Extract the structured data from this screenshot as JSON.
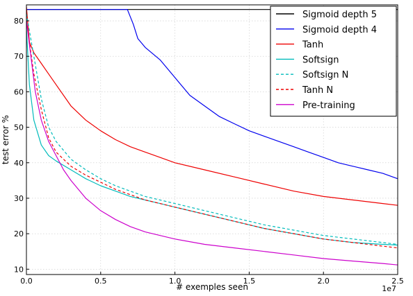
{
  "chart_data": {
    "type": "line",
    "xlabel": "# exemples seen",
    "ylabel": "test error %",
    "x_scale_label": "1e7",
    "xlim": [
      0,
      2.5
    ],
    "ylim": [
      8.5,
      84.5
    ],
    "x_ticks": [
      0.0,
      0.5,
      1.0,
      1.5,
      2.0,
      2.5
    ],
    "x_tick_labels": [
      "0.0",
      "0.5",
      "1.0",
      "1.5",
      "2.0",
      "2.5"
    ],
    "y_ticks": [
      10,
      20,
      30,
      40,
      50,
      60,
      70,
      80
    ],
    "y_tick_labels": [
      "10",
      "20",
      "30",
      "40",
      "50",
      "60",
      "70",
      "80"
    ],
    "grid": true,
    "legend_position": "top-right",
    "series": [
      {
        "name": "Sigmoid depth 5",
        "color": "#000000",
        "dash": "solid",
        "x": [
          0.0,
          0.25,
          0.5,
          0.75,
          1.0,
          1.25,
          1.5,
          1.75,
          2.0,
          2.25,
          2.5
        ],
        "y": [
          83.2,
          83.2,
          83.2,
          83.2,
          83.2,
          83.2,
          83.2,
          83.2,
          83.2,
          83.2,
          83.2
        ]
      },
      {
        "name": "Sigmoid depth 4",
        "color": "#0000ee",
        "dash": "solid",
        "x": [
          0.0,
          0.5,
          0.68,
          0.72,
          0.75,
          0.8,
          0.9,
          1.0,
          1.1,
          1.2,
          1.3,
          1.4,
          1.5,
          1.6,
          1.7,
          1.8,
          1.9,
          2.0,
          2.1,
          2.2,
          2.3,
          2.4,
          2.5
        ],
        "y": [
          83.2,
          83.2,
          83.2,
          79.0,
          75.0,
          72.5,
          69.0,
          64.0,
          59.0,
          56.0,
          53.0,
          51.0,
          49.0,
          47.5,
          46.0,
          44.5,
          43.0,
          41.5,
          40.0,
          39.0,
          38.0,
          37.0,
          35.5
        ]
      },
      {
        "name": "Tanh",
        "color": "#ee0000",
        "dash": "solid",
        "x": [
          0.0,
          0.02,
          0.05,
          0.1,
          0.15,
          0.2,
          0.3,
          0.4,
          0.5,
          0.6,
          0.7,
          0.8,
          0.9,
          1.0,
          1.2,
          1.4,
          1.6,
          1.8,
          2.0,
          2.2,
          2.4,
          2.5
        ],
        "y": [
          84.0,
          74.0,
          71.0,
          68.0,
          65.0,
          62.0,
          56.0,
          52.0,
          49.0,
          46.5,
          44.5,
          43.0,
          41.5,
          40.0,
          38.0,
          36.0,
          34.0,
          32.0,
          30.5,
          29.5,
          28.5,
          28.0
        ]
      },
      {
        "name": "Softsign",
        "color": "#00bbbb",
        "dash": "solid",
        "x": [
          0.0,
          0.02,
          0.05,
          0.1,
          0.15,
          0.2,
          0.3,
          0.4,
          0.5,
          0.6,
          0.7,
          0.8,
          0.9,
          1.0,
          1.2,
          1.4,
          1.6,
          1.8,
          2.0,
          2.2,
          2.4,
          2.5
        ],
        "y": [
          78.0,
          62.0,
          52.0,
          45.0,
          42.0,
          40.5,
          38.0,
          35.5,
          33.5,
          32.0,
          30.5,
          29.5,
          28.5,
          27.5,
          25.5,
          23.5,
          21.5,
          20.0,
          18.5,
          17.5,
          17.0,
          16.8
        ]
      },
      {
        "name": "Softsign N",
        "color": "#00bbbb",
        "dash": "dashed",
        "x": [
          0.0,
          0.05,
          0.1,
          0.15,
          0.2,
          0.3,
          0.4,
          0.5,
          0.6,
          0.7,
          0.8,
          0.9,
          1.0,
          1.2,
          1.4,
          1.6,
          1.8,
          2.0,
          2.2,
          2.4,
          2.5
        ],
        "y": [
          82.0,
          70.0,
          58.0,
          50.0,
          46.0,
          41.0,
          38.0,
          35.5,
          33.5,
          32.0,
          30.5,
          29.5,
          28.5,
          26.5,
          24.5,
          22.5,
          21.0,
          19.5,
          18.5,
          17.5,
          17.0
        ]
      },
      {
        "name": "Tanh N",
        "color": "#ee0000",
        "dash": "dashed",
        "x": [
          0.0,
          0.05,
          0.1,
          0.15,
          0.2,
          0.3,
          0.4,
          0.5,
          0.6,
          0.7,
          0.8,
          0.9,
          1.0,
          1.2,
          1.4,
          1.6,
          1.8,
          2.0,
          2.2,
          2.4,
          2.5
        ],
        "y": [
          80.0,
          65.0,
          55.0,
          47.0,
          43.0,
          39.0,
          36.5,
          34.5,
          32.5,
          31.0,
          29.5,
          28.5,
          27.5,
          25.5,
          23.5,
          21.5,
          20.0,
          18.5,
          17.5,
          16.5,
          16.0
        ]
      },
      {
        "name": "Pre-training",
        "color": "#cc00cc",
        "dash": "solid",
        "x": [
          0.0,
          0.03,
          0.06,
          0.1,
          0.15,
          0.2,
          0.25,
          0.3,
          0.4,
          0.5,
          0.6,
          0.7,
          0.8,
          1.0,
          1.2,
          1.4,
          1.6,
          1.8,
          2.0,
          2.2,
          2.4,
          2.5
        ],
        "y": [
          80.0,
          70.0,
          60.0,
          52.0,
          46.0,
          42.0,
          38.0,
          35.0,
          30.0,
          26.5,
          24.0,
          22.0,
          20.5,
          18.5,
          17.0,
          16.0,
          15.0,
          14.0,
          13.0,
          12.3,
          11.6,
          11.2
        ]
      }
    ]
  }
}
